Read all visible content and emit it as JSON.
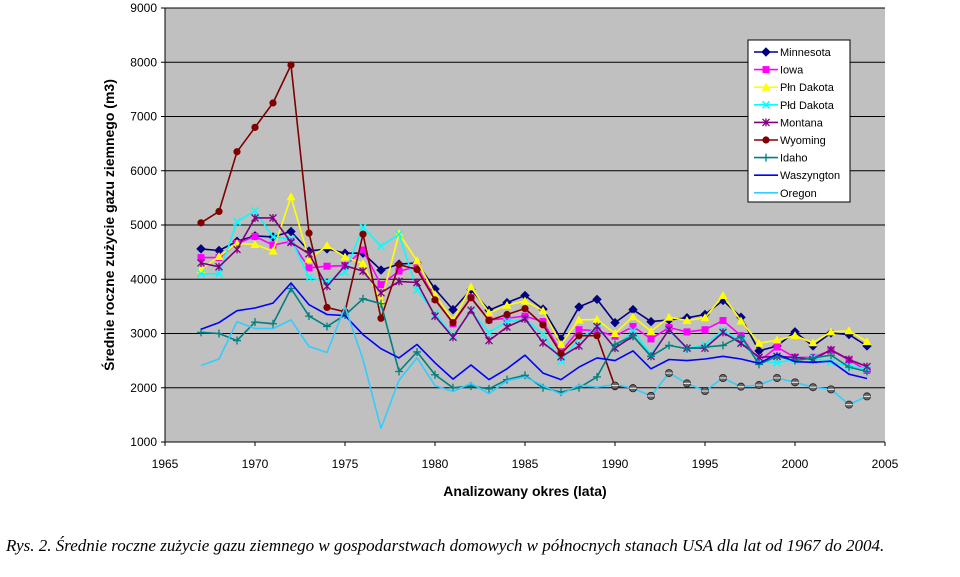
{
  "caption": "Rys. 2. Średnie roczne zużycie gazu ziemnego w gospodarstwach domowych w północnych stanach USA dla lat od 1967 do 2004.",
  "chart_data": {
    "type": "line",
    "xlabel": "Analizowany okres (lata)",
    "ylabel": "Średnie roczne zużycie gazu ziemnego (m3)",
    "xlim": [
      1965,
      2005
    ],
    "ylim": [
      1000,
      9000
    ],
    "xticks": [
      1965,
      1970,
      1975,
      1980,
      1985,
      1990,
      1995,
      2000,
      2005
    ],
    "yticks": [
      1000,
      2000,
      3000,
      4000,
      5000,
      6000,
      7000,
      8000,
      9000
    ],
    "grid": "horizontal",
    "legend_position": "top-right",
    "plot_background": "#c0c0c0",
    "series": [
      {
        "name": "Minnesota",
        "color": "#000080",
        "marker": "diamond",
        "x": [
          1967,
          1968,
          1969,
          1970,
          1971,
          1972,
          1973,
          1974,
          1975,
          1976,
          1977,
          1978,
          1979,
          1980,
          1981,
          1982,
          1983,
          1984,
          1985,
          1986,
          1987,
          1988,
          1989,
          1990,
          1991,
          1992,
          1993,
          1994,
          1995,
          1996,
          1997,
          1998,
          1999,
          2000,
          2001,
          2002,
          2003,
          2004
        ],
        "y": [
          4560,
          4530,
          4700,
          4800,
          4780,
          4880,
          4520,
          4560,
          4480,
          4480,
          4170,
          4280,
          4300,
          3820,
          3440,
          3810,
          3430,
          3570,
          3700,
          3450,
          2900,
          3490,
          3630,
          3200,
          3440,
          3220,
          3250,
          3290,
          3350,
          3610,
          3300,
          2680,
          2770,
          3030,
          2770,
          3010,
          2980,
          2770
        ]
      },
      {
        "name": "Iowa",
        "color": "#ff00ff",
        "marker": "square",
        "x": [
          1967,
          1968,
          1969,
          1970,
          1971,
          1972,
          1973,
          1974,
          1975,
          1976,
          1977,
          1978,
          1979,
          1980,
          1981,
          1982,
          1983,
          1984,
          1985,
          1986,
          1987,
          1988,
          1989,
          1990,
          1991,
          1992,
          1993,
          1994,
          1995,
          1996,
          1997,
          1998,
          1999,
          2000,
          2001,
          2002,
          2003,
          2004
        ],
        "y": [
          4400,
          4400,
          4660,
          4790,
          4630,
          4700,
          4210,
          4240,
          4250,
          4540,
          3900,
          4150,
          4230,
          3640,
          3180,
          3660,
          3250,
          3280,
          3320,
          3220,
          2660,
          3070,
          3050,
          2950,
          3130,
          2900,
          3110,
          3030,
          3070,
          3240,
          2960,
          2490,
          2750,
          2560,
          2560,
          2690,
          2510,
          2320
        ]
      },
      {
        "name": "Płn Dakota",
        "color": "#ffff00",
        "marker": "triangle",
        "x": [
          1967,
          1968,
          1969,
          1970,
          1971,
          1972,
          1973,
          1974,
          1975,
          1976,
          1977,
          1978,
          1979,
          1980,
          1981,
          1982,
          1983,
          1984,
          1985,
          1986,
          1987,
          1988,
          1989,
          1990,
          1991,
          1992,
          1993,
          1994,
          1995,
          1996,
          1997,
          1998,
          1999,
          2000,
          2001,
          2002,
          2003,
          2004
        ],
        "y": [
          4180,
          4420,
          4660,
          4640,
          4520,
          5520,
          4370,
          4620,
          4410,
          4290,
          3580,
          4840,
          4340,
          3720,
          3240,
          3860,
          3380,
          3520,
          3600,
          3420,
          2800,
          3250,
          3260,
          3000,
          3310,
          3040,
          3300,
          3240,
          3290,
          3700,
          3230,
          2820,
          2880,
          2960,
          2830,
          3030,
          3050,
          2850
        ]
      },
      {
        "name": "Płd Dakota",
        "color": "#00ffff",
        "marker": "x",
        "x": [
          1967,
          1968,
          1969,
          1970,
          1971,
          1972,
          1973,
          1974,
          1975,
          1976,
          1977,
          1978,
          1979,
          1980,
          1981,
          1982,
          1983,
          1984,
          1985,
          1986,
          1987,
          1988,
          1989,
          1990,
          1991,
          1992,
          1993,
          1994,
          1995,
          1996,
          1997,
          1998,
          1999,
          2000,
          2001,
          2002,
          2003,
          2004
        ],
        "y": [
          4100,
          4100,
          5060,
          5260,
          4780,
          4740,
          4030,
          3960,
          4130,
          4960,
          4610,
          4830,
          3800,
          3370,
          2960,
          3410,
          3020,
          3220,
          3270,
          2980,
          2490,
          2910,
          3110,
          2730,
          3050,
          2620,
          3060,
          2720,
          2790,
          3060,
          2850,
          2500,
          2460,
          2520,
          2550,
          2470,
          2400,
          2350
        ]
      },
      {
        "name": "Montana",
        "color": "#800080",
        "marker": "asterisk",
        "x": [
          1967,
          1968,
          1969,
          1970,
          1971,
          1972,
          1973,
          1974,
          1975,
          1976,
          1977,
          1978,
          1979,
          1980,
          1981,
          1982,
          1983,
          1984,
          1985,
          1986,
          1987,
          1988,
          1989,
          1990,
          1991,
          1992,
          1993,
          1994,
          1995,
          1996,
          1997,
          1998,
          1999,
          2000,
          2001,
          2002,
          2003,
          2004
        ],
        "y": [
          4300,
          4230,
          4550,
          5130,
          5130,
          4680,
          4470,
          3870,
          4250,
          4150,
          3750,
          3960,
          3940,
          3320,
          2930,
          3430,
          2870,
          3120,
          3270,
          2830,
          2570,
          2770,
          3130,
          2730,
          2950,
          2580,
          3070,
          2730,
          2730,
          3020,
          2820,
          2560,
          2580,
          2560,
          2520,
          2700,
          2520,
          2390
        ]
      },
      {
        "name": "Wyoming",
        "color": "#800000",
        "marker": "circle",
        "x": [
          1967,
          1968,
          1969,
          1970,
          1971,
          1972,
          1973,
          1974,
          1975,
          1976,
          1977,
          1978,
          1979,
          1980,
          1981,
          1982,
          1983,
          1984,
          1985,
          1986,
          1987,
          1988,
          1989,
          1990,
          1991
        ],
        "y": [
          5040,
          5250,
          6350,
          6800,
          7250,
          7950,
          4850,
          3480,
          3400,
          4830,
          3280,
          4270,
          4180,
          3620,
          3200,
          3660,
          3240,
          3350,
          3460,
          3160,
          2630,
          2960,
          2960,
          2020,
          2000
        ]
      },
      {
        "name": "Idaho",
        "color": "#008080",
        "marker": "plus",
        "x": [
          1967,
          1968,
          1969,
          1970,
          1971,
          1972,
          1973,
          1974,
          1975,
          1976,
          1977,
          1978,
          1979,
          1980,
          1981,
          1982,
          1983,
          1984,
          1985,
          1986,
          1987,
          1988,
          1989,
          1990,
          1991,
          1992,
          1993,
          1994,
          1995,
          1996,
          1997,
          1998,
          1999,
          2000,
          2001,
          2002,
          2003,
          2004
        ],
        "y": [
          3020,
          3000,
          2870,
          3210,
          3180,
          3830,
          3320,
          3130,
          3340,
          3640,
          3550,
          2300,
          2660,
          2240,
          2000,
          2030,
          1980,
          2150,
          2230,
          2000,
          1920,
          2000,
          2200,
          2800,
          2960,
          2580,
          2780,
          2720,
          2750,
          2780,
          2950,
          2430,
          2580,
          2500,
          2550,
          2600,
          2380,
          2300
        ]
      },
      {
        "name": "Waszyngton",
        "color": "#0000ff",
        "marker": "none",
        "x": [
          1967,
          1968,
          1969,
          1970,
          1971,
          1972,
          1973,
          1974,
          1975,
          1976,
          1977,
          1978,
          1979,
          1980,
          1981,
          1982,
          1983,
          1984,
          1985,
          1986,
          1987,
          1988,
          1989,
          1990,
          1991,
          1992,
          1993,
          1994,
          1995,
          1996,
          1997,
          1998,
          1999,
          2000,
          2001,
          2002,
          2003,
          2004
        ],
        "y": [
          3080,
          3200,
          3420,
          3470,
          3560,
          3930,
          3530,
          3350,
          3330,
          2980,
          2720,
          2550,
          2800,
          2460,
          2160,
          2420,
          2150,
          2350,
          2600,
          2270,
          2150,
          2380,
          2550,
          2500,
          2680,
          2350,
          2520,
          2500,
          2530,
          2580,
          2530,
          2450,
          2620,
          2480,
          2470,
          2490,
          2250,
          2170
        ]
      },
      {
        "name": "Oregon",
        "color": "#33ccff",
        "marker": "none",
        "x": [
          1967,
          1968,
          1969,
          1970,
          1971,
          1972,
          1973,
          1974,
          1975,
          1976,
          1977,
          1978,
          1979,
          1980,
          1981,
          1982,
          1983,
          1984,
          1985,
          1986,
          1987,
          1988,
          1989,
          1990,
          1991,
          1992,
          1993,
          1994,
          1995,
          1996,
          1997,
          1998,
          1999,
          2000,
          2001,
          2002,
          2003,
          2004
        ],
        "y": [
          2410,
          2530,
          3220,
          3090,
          3090,
          3250,
          2760,
          2650,
          3490,
          2520,
          1250,
          2140,
          2550,
          2040,
          1930,
          2080,
          1890,
          2130,
          2200,
          2040,
          1880,
          2050,
          2010,
          2060,
          1990,
          1850,
          2270,
          2080,
          1940,
          2180,
          2020,
          2050,
          2180,
          2100,
          2010,
          1970,
          1690,
          1840
        ]
      },
      {
        "name": "",
        "color": "#333333",
        "marker": "circle-band",
        "x": [
          1990,
          1991,
          1992,
          1993,
          1994,
          1995,
          1996,
          1997,
          1998,
          1999,
          2000,
          2001,
          2002,
          2003,
          2004
        ],
        "y": [
          2040,
          1990,
          1850,
          2270,
          2080,
          1940,
          2180,
          2020,
          2050,
          2180,
          2100,
          2010,
          1970,
          1690,
          1840
        ]
      }
    ]
  }
}
